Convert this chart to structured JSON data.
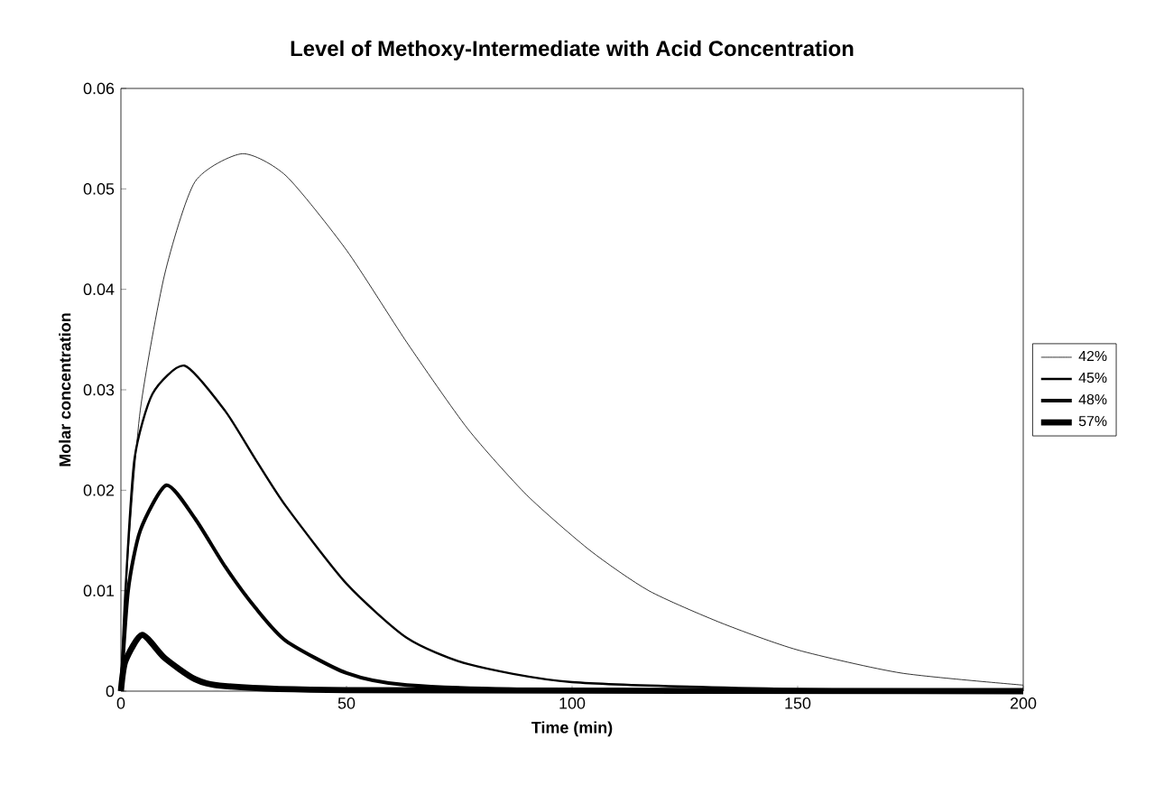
{
  "chart_data": {
    "type": "line",
    "title": "Level of Methoxy-Intermediate with Acid Concentration",
    "xlabel": "Time (min)",
    "ylabel": "Molar concentration",
    "xlim": [
      0,
      200
    ],
    "xticks": [
      0,
      50,
      100,
      150,
      200
    ],
    "ylim": [
      0,
      0.06
    ],
    "yticks": [
      0,
      0.01,
      0.02,
      0.03,
      0.04,
      0.05,
      0.06
    ],
    "legend": "right",
    "marker": "none",
    "line_style": "solid",
    "series": [
      {
        "name": "42%",
        "color": "#000000",
        "x": [
          0,
          1.6,
          4.3,
          9.7,
          16.4,
          26.9,
          36.6,
          50,
          63.4,
          76.9,
          90,
          104,
          117,
          133,
          150,
          173,
          200
        ],
        "values": [
          0,
          0.0136,
          0.028,
          0.0415,
          0.0507,
          0.0535,
          0.0513,
          0.0439,
          0.0347,
          0.0261,
          0.0195,
          0.014,
          0.01,
          0.0068,
          0.0041,
          0.0018,
          0.0006
        ]
      },
      {
        "name": "45%",
        "color": "#000000",
        "x": [
          0,
          1,
          3,
          7,
          14.1,
          23.1,
          29.8,
          36.6,
          50,
          63.4,
          76.9,
          100,
          150,
          200
        ],
        "values": [
          0,
          0.01,
          0.0231,
          0.0296,
          0.0324,
          0.0279,
          0.0231,
          0.0184,
          0.0107,
          0.0053,
          0.0027,
          0.0009,
          0.0002,
          0
        ]
      },
      {
        "name": "48%",
        "color": "#000000",
        "x": [
          0,
          1.6,
          4.3,
          10.1,
          16.4,
          23.1,
          29.8,
          36.6,
          50,
          63.4,
          100,
          200
        ],
        "values": [
          0,
          0.01,
          0.016,
          0.0205,
          0.0172,
          0.0124,
          0.0083,
          0.005,
          0.0018,
          0.0006,
          0.0001,
          0
        ]
      },
      {
        "name": "57%",
        "color": "#000000",
        "x": [
          0,
          1,
          4.7,
          9.7,
          16.4,
          23.1,
          50,
          200
        ],
        "values": [
          0,
          0.003,
          0.0056,
          0.0033,
          0.0012,
          0.0005,
          0.0001,
          0
        ]
      }
    ]
  }
}
